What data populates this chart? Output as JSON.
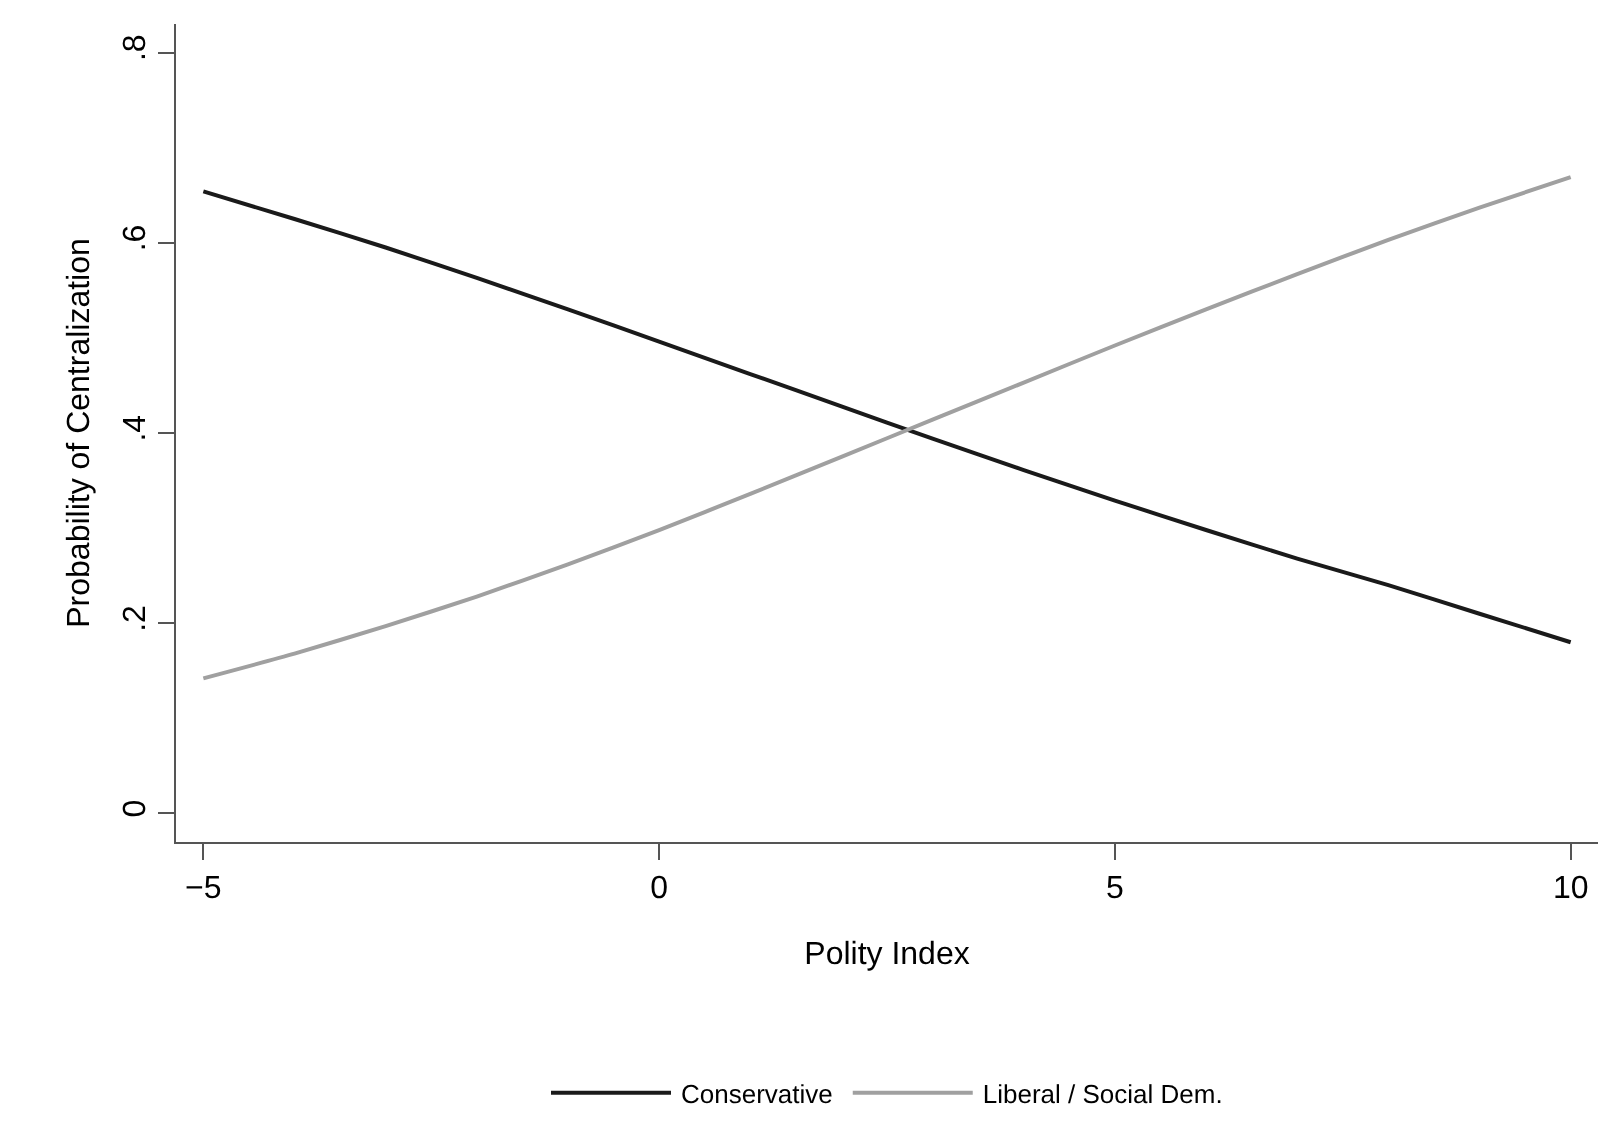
{
  "chart_data": {
    "type": "line",
    "xlabel": "Polity Index",
    "ylabel": "Probability of Centralization",
    "x": [
      -5,
      -4,
      -3,
      -2,
      -1,
      0,
      1,
      2,
      3,
      4,
      5,
      6,
      7,
      8,
      9,
      10
    ],
    "series": [
      {
        "name": "Conservative",
        "color": "#1a1a1a",
        "values": [
          0.654,
          0.625,
          0.595,
          0.563,
          0.53,
          0.496,
          0.462,
          0.428,
          0.394,
          0.361,
          0.329,
          0.298,
          0.268,
          0.24,
          0.21,
          0.18
        ]
      },
      {
        "name": "Liberal / Social Dem.",
        "color": "#a0a0a0",
        "values": [
          0.142,
          0.168,
          0.197,
          0.228,
          0.262,
          0.298,
          0.336,
          0.375,
          0.414,
          0.453,
          0.492,
          0.53,
          0.567,
          0.603,
          0.637,
          0.669
        ]
      }
    ],
    "xlim": [
      -5.3,
      10.3
    ],
    "xticks": [
      {
        "value": -5,
        "label": "−5"
      },
      0,
      5,
      10
    ],
    "ylim": [
      -0.03,
      0.83
    ],
    "yticks": [
      {
        "value": 0,
        "label": "0"
      },
      {
        "value": 0.2,
        "label": ".2"
      },
      {
        "value": 0.4,
        "label": ".4"
      },
      {
        "value": 0.6,
        "label": ".6"
      },
      {
        "value": 0.8,
        "label": ".8"
      }
    ],
    "grid": false,
    "legend": "bottom",
    "marker": "none",
    "line_style": "solid"
  }
}
